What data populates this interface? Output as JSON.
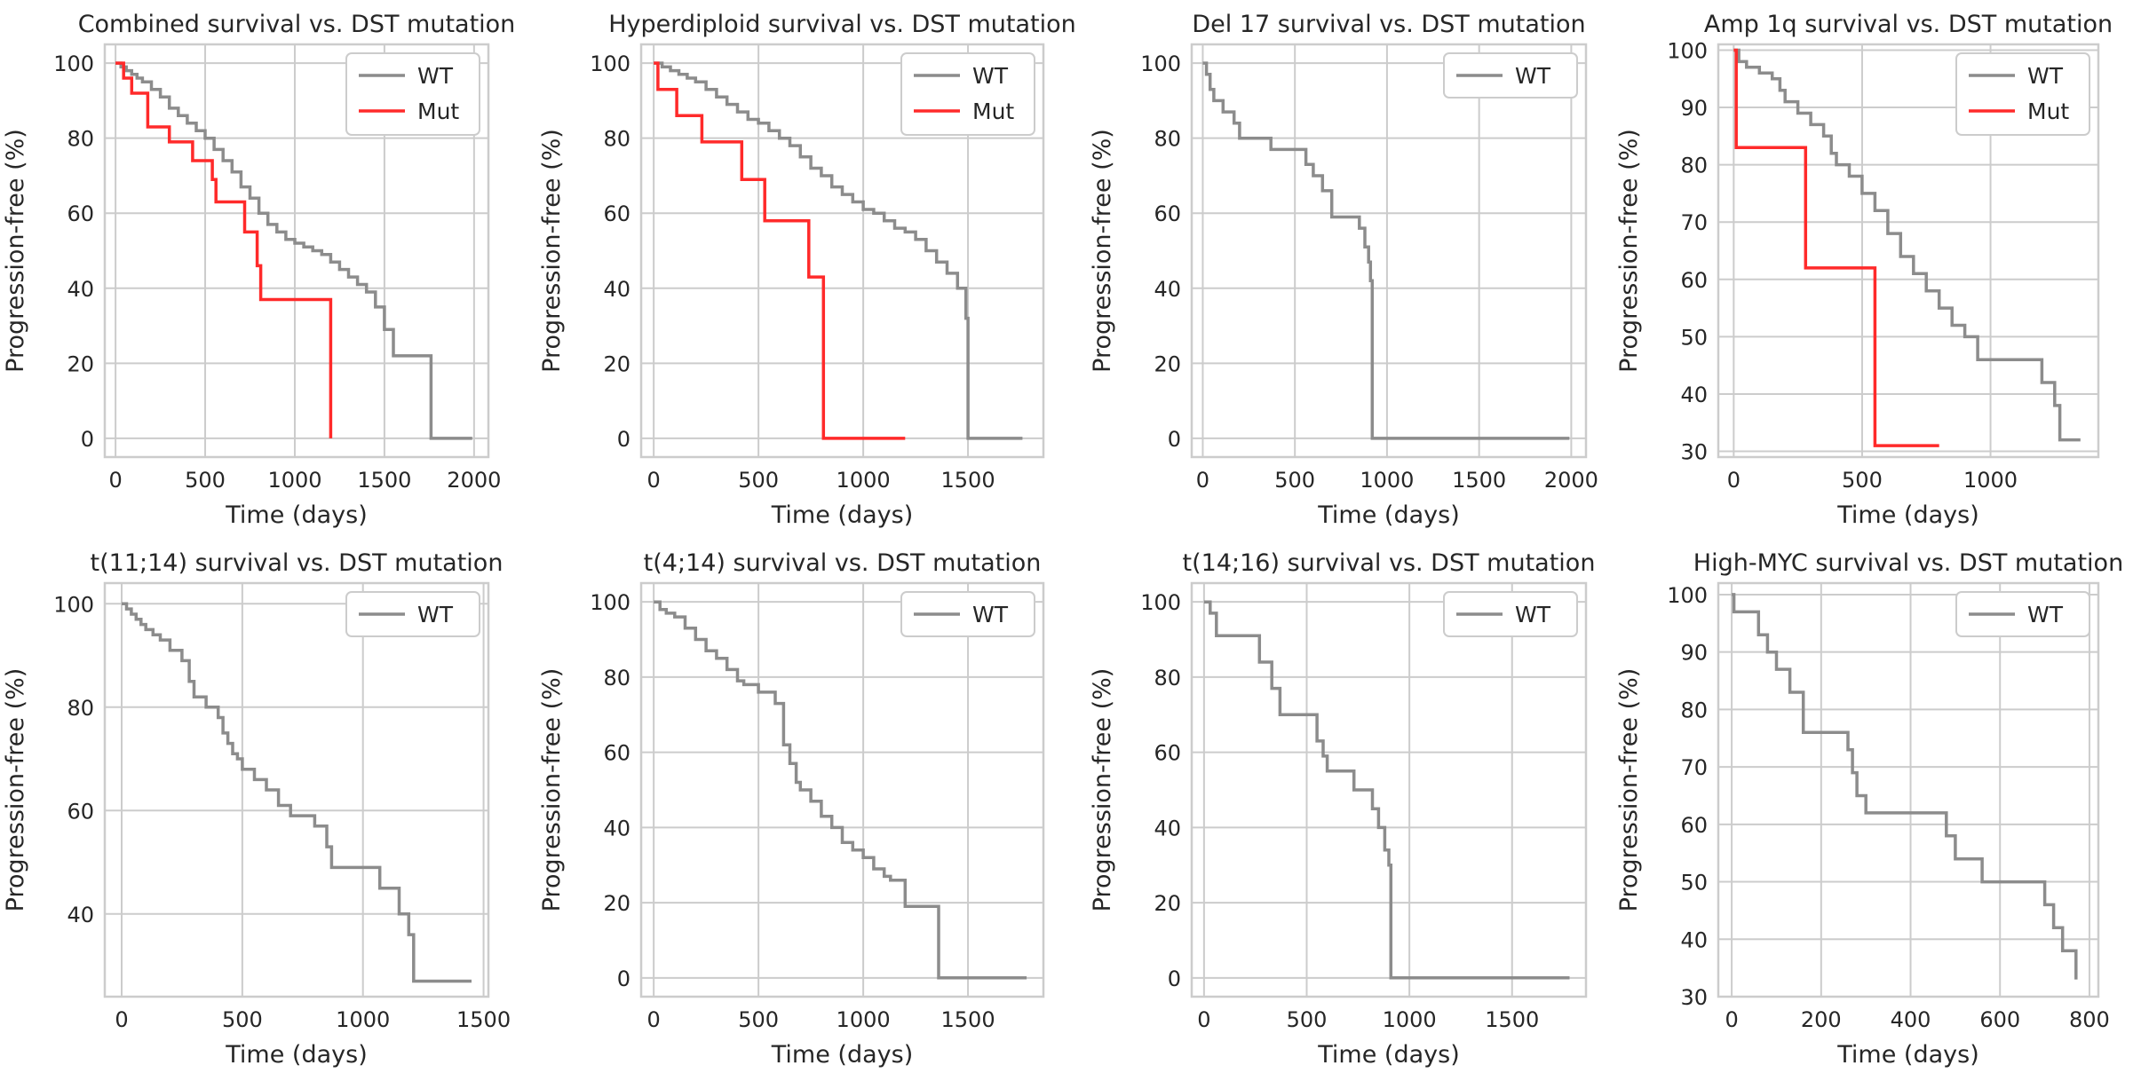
{
  "figure": {
    "colors": {
      "WT": "#8c8c8c",
      "Mut": "#ff2a2a",
      "grid": "#cccccc",
      "frame": "#cccccc"
    }
  },
  "chart_data": [
    {
      "type": "line",
      "step": true,
      "title": "Combined survival vs. DST mutation",
      "xlabel": "Time (days)",
      "ylabel": "Progression-free (%)",
      "xlim": [
        -60,
        2080
      ],
      "ylim": [
        -5,
        105
      ],
      "xticks": [
        0,
        500,
        1000,
        1500,
        2000
      ],
      "yticks": [
        0,
        20,
        40,
        60,
        80,
        100
      ],
      "legend": [
        "WT",
        "Mut"
      ],
      "legend_loc": "upper right",
      "series": [
        {
          "name": "WT",
          "x": [
            0,
            30,
            60,
            90,
            120,
            150,
            200,
            250,
            300,
            350,
            400,
            450,
            500,
            550,
            600,
            650,
            700,
            750,
            800,
            850,
            900,
            950,
            1000,
            1050,
            1100,
            1150,
            1200,
            1250,
            1300,
            1350,
            1400,
            1450,
            1500,
            1550,
            1600,
            1650,
            1700,
            1750,
            1760,
            1990
          ],
          "y": [
            100,
            99,
            98,
            97,
            96,
            95,
            93,
            91,
            88,
            86,
            84,
            82,
            80,
            77,
            74,
            71,
            67,
            64,
            60,
            57,
            55,
            53,
            52,
            51,
            50,
            49,
            47,
            45,
            43,
            41,
            39,
            35,
            29,
            22,
            22,
            22,
            22,
            22,
            0,
            0
          ]
        },
        {
          "name": "Mut",
          "x": [
            0,
            45,
            90,
            180,
            300,
            430,
            540,
            560,
            720,
            790,
            810,
            1200
          ],
          "y": [
            100,
            96,
            92,
            83,
            79,
            74,
            69,
            63,
            55,
            46,
            37,
            0
          ]
        }
      ]
    },
    {
      "type": "line",
      "step": true,
      "title": "Hyperdiploid survival vs. DST mutation",
      "xlabel": "Time (days)",
      "ylabel": "Progression-free (%)",
      "xlim": [
        -60,
        1860
      ],
      "ylim": [
        -5,
        105
      ],
      "xticks": [
        0,
        500,
        1000,
        1500
      ],
      "yticks": [
        0,
        20,
        40,
        60,
        80,
        100
      ],
      "legend": [
        "WT",
        "Mut"
      ],
      "legend_loc": "upper right",
      "series": [
        {
          "name": "WT",
          "x": [
            0,
            40,
            80,
            120,
            160,
            200,
            250,
            300,
            350,
            400,
            450,
            500,
            550,
            600,
            650,
            700,
            750,
            800,
            850,
            900,
            950,
            1000,
            1050,
            1100,
            1150,
            1200,
            1250,
            1300,
            1350,
            1400,
            1450,
            1490,
            1500,
            1760
          ],
          "y": [
            100,
            99,
            98,
            97,
            96,
            95,
            93,
            91,
            89,
            87,
            85,
            84,
            82,
            80,
            78,
            75,
            72,
            70,
            67,
            65,
            63,
            61,
            60,
            58,
            56,
            55,
            53,
            50,
            47,
            44,
            40,
            32,
            0,
            0
          ]
        },
        {
          "name": "Mut",
          "x": [
            0,
            20,
            110,
            230,
            420,
            530,
            740,
            810,
            1200
          ],
          "y": [
            100,
            93,
            86,
            79,
            69,
            58,
            43,
            0,
            0
          ]
        }
      ]
    },
    {
      "type": "line",
      "step": true,
      "title": "Del 17 survival vs. DST mutation",
      "xlabel": "Time (days)",
      "ylabel": "Progression-free (%)",
      "xlim": [
        -60,
        2080
      ],
      "ylim": [
        -5,
        105
      ],
      "xticks": [
        0,
        500,
        1000,
        1500,
        2000
      ],
      "yticks": [
        0,
        20,
        40,
        60,
        80,
        100
      ],
      "legend": [
        "WT"
      ],
      "legend_loc": "upper right",
      "series": [
        {
          "name": "WT",
          "x": [
            0,
            20,
            40,
            60,
            110,
            170,
            200,
            280,
            370,
            560,
            600,
            650,
            700,
            850,
            880,
            900,
            910,
            920,
            1990
          ],
          "y": [
            100,
            97,
            93,
            90,
            87,
            84,
            80,
            80,
            77,
            73,
            70,
            66,
            59,
            56,
            51,
            47,
            42,
            0,
            0
          ]
        }
      ]
    },
    {
      "type": "line",
      "step": true,
      "title": "Amp 1q survival vs. DST mutation",
      "xlabel": "Time (days)",
      "ylabel": "Progression-free (%)",
      "xlim": [
        -60,
        1420
      ],
      "ylim": [
        29,
        101
      ],
      "xticks": [
        0,
        500,
        1000
      ],
      "yticks": [
        30,
        40,
        50,
        60,
        70,
        80,
        90,
        100
      ],
      "legend": [
        "WT",
        "Mut"
      ],
      "legend_loc": "upper right",
      "series": [
        {
          "name": "WT",
          "x": [
            0,
            20,
            50,
            100,
            150,
            180,
            200,
            250,
            300,
            350,
            380,
            400,
            450,
            500,
            550,
            600,
            650,
            700,
            750,
            800,
            850,
            900,
            950,
            1000,
            1050,
            1100,
            1150,
            1200,
            1250,
            1270,
            1300,
            1350
          ],
          "y": [
            100,
            98,
            97,
            96,
            95,
            93,
            91,
            89,
            87,
            85,
            82,
            80,
            78,
            75,
            72,
            68,
            64,
            61,
            58,
            55,
            52,
            50,
            46,
            46,
            46,
            46,
            46,
            42,
            38,
            32,
            32,
            32
          ]
        },
        {
          "name": "Mut",
          "x": [
            0,
            10,
            280,
            550,
            800
          ],
          "y": [
            100,
            83,
            62,
            31,
            31
          ]
        }
      ]
    },
    {
      "type": "line",
      "step": true,
      "title": "t(11;14) survival vs. DST mutation",
      "xlabel": "Time (days)",
      "ylabel": "Progression-free (%)",
      "xlim": [
        -70,
        1520
      ],
      "ylim": [
        24,
        104
      ],
      "xticks": [
        0,
        500,
        1000,
        1500
      ],
      "yticks": [
        40,
        60,
        80,
        100
      ],
      "legend": [
        "WT"
      ],
      "legend_loc": "upper right",
      "series": [
        {
          "name": "WT",
          "x": [
            0,
            20,
            40,
            60,
            80,
            100,
            130,
            160,
            200,
            250,
            280,
            300,
            350,
            400,
            420,
            440,
            460,
            480,
            500,
            550,
            600,
            650,
            700,
            800,
            850,
            870,
            900,
            1000,
            1070,
            1150,
            1190,
            1210,
            1450
          ],
          "y": [
            100,
            99,
            98,
            97,
            96,
            95,
            94,
            93,
            91,
            89,
            85,
            82,
            80,
            78,
            75,
            73,
            71,
            70,
            68,
            66,
            64,
            61,
            59,
            57,
            53,
            49,
            49,
            49,
            45,
            40,
            36,
            27,
            27
          ]
        }
      ]
    },
    {
      "type": "line",
      "step": true,
      "title": "t(4;14) survival vs. DST mutation",
      "xlabel": "Time (days)",
      "ylabel": "Progression-free (%)",
      "xlim": [
        -60,
        1860
      ],
      "ylim": [
        -5,
        105
      ],
      "xticks": [
        0,
        500,
        1000,
        1500
      ],
      "yticks": [
        0,
        20,
        40,
        60,
        80,
        100
      ],
      "legend": [
        "WT"
      ],
      "legend_loc": "upper right",
      "series": [
        {
          "name": "WT",
          "x": [
            0,
            30,
            60,
            100,
            150,
            200,
            250,
            300,
            350,
            400,
            430,
            500,
            550,
            580,
            620,
            650,
            680,
            700,
            750,
            800,
            850,
            900,
            950,
            1000,
            1050,
            1100,
            1130,
            1200,
            1300,
            1350,
            1360,
            1780
          ],
          "y": [
            100,
            98,
            97,
            96,
            93,
            90,
            87,
            85,
            82,
            79,
            78,
            76,
            76,
            73,
            62,
            57,
            52,
            50,
            47,
            43,
            40,
            36,
            34,
            32,
            29,
            27,
            26,
            19,
            19,
            19,
            0,
            0
          ]
        }
      ]
    },
    {
      "type": "line",
      "step": true,
      "title": "t(14;16) survival vs. DST mutation",
      "xlabel": "Time (days)",
      "ylabel": "Progression-free (%)",
      "xlim": [
        -60,
        1860
      ],
      "ylim": [
        -5,
        105
      ],
      "xticks": [
        0,
        500,
        1000,
        1500
      ],
      "yticks": [
        0,
        20,
        40,
        60,
        80,
        100
      ],
      "legend": [
        "WT"
      ],
      "legend_loc": "upper right",
      "series": [
        {
          "name": "WT",
          "x": [
            0,
            30,
            60,
            270,
            330,
            370,
            400,
            550,
            580,
            600,
            650,
            730,
            820,
            850,
            880,
            900,
            910,
            1780
          ],
          "y": [
            100,
            97,
            91,
            84,
            77,
            70,
            70,
            63,
            59,
            55,
            55,
            50,
            45,
            40,
            34,
            30,
            0,
            0
          ]
        }
      ]
    },
    {
      "type": "line",
      "step": true,
      "title": "High-MYC survival vs. DST mutation",
      "xlabel": "Time (days)",
      "ylabel": "Progression-free (%)",
      "xlim": [
        -30,
        820
      ],
      "ylim": [
        30,
        102
      ],
      "xticks": [
        0,
        200,
        400,
        600,
        800
      ],
      "yticks": [
        30,
        40,
        50,
        60,
        70,
        80,
        90,
        100
      ],
      "legend": [
        "WT"
      ],
      "legend_loc": "upper right",
      "series": [
        {
          "name": "WT",
          "x": [
            0,
            5,
            60,
            80,
            100,
            130,
            160,
            260,
            270,
            280,
            300,
            360,
            480,
            500,
            560,
            700,
            720,
            740,
            770
          ],
          "y": [
            100,
            97,
            93,
            90,
            87,
            83,
            76,
            73,
            69,
            65,
            62,
            62,
            58,
            54,
            50,
            46,
            42,
            38,
            33
          ]
        }
      ]
    }
  ]
}
